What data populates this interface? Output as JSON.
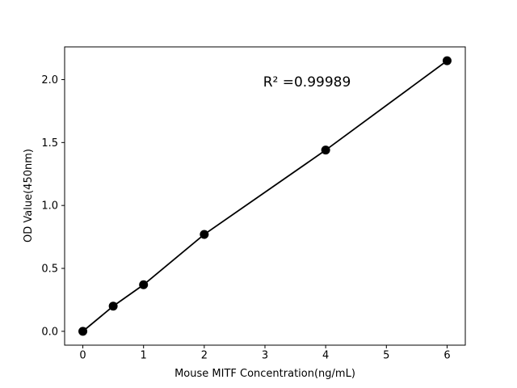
{
  "chart_data": {
    "type": "scatter",
    "title": "",
    "xlabel": "Mouse MITF Concentration(ng/mL)",
    "ylabel": "OD Value(450nm)",
    "annotation": "R² =0.99989",
    "x": [
      0,
      0.5,
      1,
      2,
      4,
      6
    ],
    "y": [
      0.0,
      0.2,
      0.37,
      0.77,
      1.44,
      2.15
    ],
    "series_name": "standard-curve",
    "xticks": [
      0,
      1,
      2,
      3,
      4,
      5,
      6
    ],
    "xtick_labels": [
      "0",
      "1",
      "2",
      "3",
      "4",
      "5",
      "6"
    ],
    "yticks": [
      0.0,
      0.5,
      1.0,
      1.5,
      2.0
    ],
    "ytick_labels": [
      "0.0",
      "0.5",
      "1.0",
      "1.5",
      "2.0"
    ],
    "xlim": [
      -0.3,
      6.3
    ],
    "ylim": [
      -0.11,
      2.26
    ],
    "grid": false,
    "legend": false,
    "line_color": "#000000",
    "marker_color": "#000000",
    "text_color": "#000000",
    "background_color": "#ffffff",
    "has_line": true,
    "marker": "circle"
  }
}
